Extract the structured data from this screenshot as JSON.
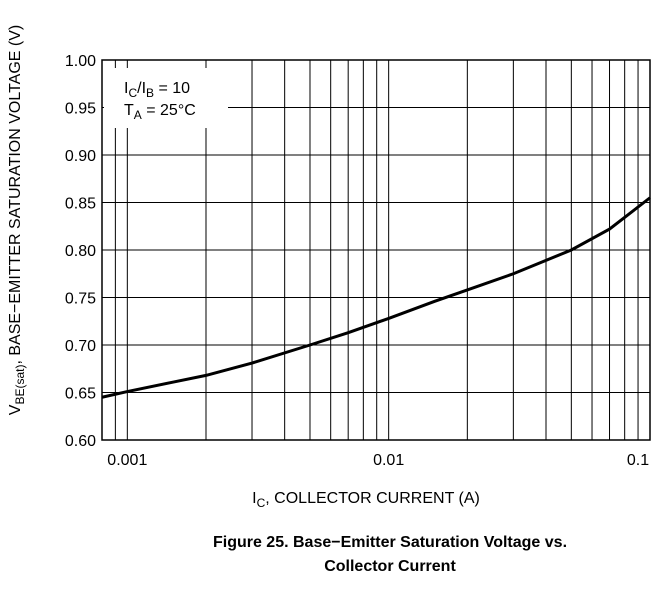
{
  "chart_data": {
    "type": "line",
    "y_label": {
      "main": "V",
      "sub": "BE(sat)",
      "rest": ", BASE−EMITTER SATURATION VOLTAGE (V)"
    },
    "x_label": {
      "main": "I",
      "sub": "C",
      "rest": ", COLLECTOR CURRENT (A)"
    },
    "annotation": [
      [
        {
          "t": "I"
        },
        {
          "t": "C",
          "sub": true
        },
        {
          "t": "/I"
        },
        {
          "t": "B",
          "sub": true
        },
        {
          "t": " = 10"
        }
      ],
      [
        {
          "t": "T"
        },
        {
          "t": "A",
          "sub": true
        },
        {
          "t": " = 25°C"
        }
      ]
    ],
    "caption": [
      "Figure 25. Base−Emitter Saturation Voltage vs.",
      "Collector Current"
    ],
    "log_x": true,
    "grid": true,
    "xlim": [
      0.0008,
      0.1
    ],
    "ylim": [
      0.6,
      1.0
    ],
    "xticks": [
      0.001,
      0.01,
      0.1
    ],
    "x_minor_ticks": [
      0.0009,
      0.002,
      0.003,
      0.004,
      0.005,
      0.006,
      0.007,
      0.008,
      0.009,
      0.02,
      0.03,
      0.04,
      0.05,
      0.06,
      0.07,
      0.08,
      0.09
    ],
    "yticks": [
      {
        "value": 0.6,
        "label": "0.60"
      },
      {
        "value": 0.65,
        "label": "0.65"
      },
      {
        "value": 0.7,
        "label": "0.70"
      },
      {
        "value": 0.75,
        "label": "0.75"
      },
      {
        "value": 0.8,
        "label": "0.80"
      },
      {
        "value": 0.85,
        "label": "0.85"
      },
      {
        "value": 0.9,
        "label": "0.90"
      },
      {
        "value": 0.95,
        "label": "0.95"
      },
      {
        "value": 1.0,
        "label": "1.00"
      }
    ],
    "series": [
      {
        "color": "#000000",
        "x": [
          0.0008,
          0.001,
          0.0015,
          0.002,
          0.003,
          0.005,
          0.007,
          0.01,
          0.015,
          0.02,
          0.03,
          0.05,
          0.07,
          0.1
        ],
        "values": [
          0.645,
          0.651,
          0.661,
          0.668,
          0.681,
          0.7,
          0.713,
          0.728,
          0.746,
          0.758,
          0.775,
          0.8,
          0.822,
          0.855
        ]
      }
    ]
  }
}
